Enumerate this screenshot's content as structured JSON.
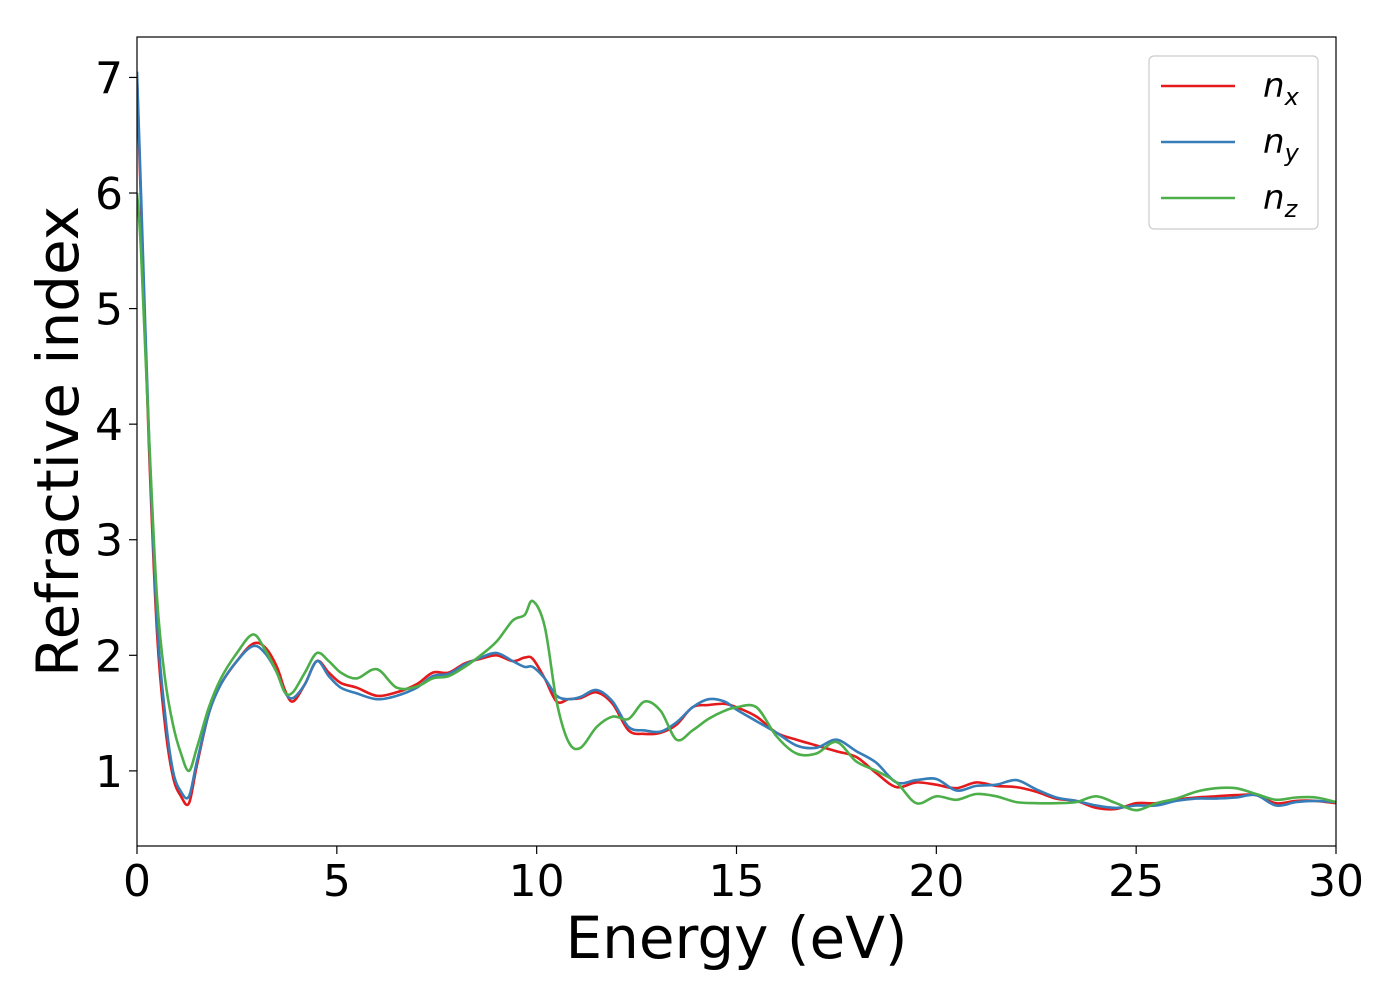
{
  "chart_data": {
    "type": "line",
    "xlabel": "Energy (eV)",
    "ylabel": "Refractive index",
    "xlim": [
      0,
      30
    ],
    "ylim": [
      0.35,
      7.35
    ],
    "xticks": [
      0,
      5,
      10,
      15,
      20,
      25,
      30
    ],
    "xtick_labels": [
      "0",
      "5",
      "10",
      "15",
      "20",
      "25",
      "30"
    ],
    "yticks": [
      1,
      2,
      3,
      4,
      5,
      6,
      7
    ],
    "ytick_labels": [
      "1",
      "2",
      "3",
      "4",
      "5",
      "6",
      "7"
    ],
    "grid": false,
    "legend_position": "top-right",
    "series": [
      {
        "name": "n",
        "subscript": "x",
        "color": "#e41a1c",
        "x": [
          0,
          0.1,
          0.3,
          0.5,
          0.7,
          0.9,
          1.1,
          1.3,
          1.5,
          1.8,
          2.1,
          2.5,
          2.9,
          3.2,
          3.5,
          3.7,
          3.9,
          4.2,
          4.5,
          4.8,
          5.1,
          5.5,
          6.0,
          6.5,
          7.0,
          7.4,
          7.8,
          8.2,
          8.6,
          9.0,
          9.4,
          9.7,
          9.9,
          10.2,
          10.5,
          10.8,
          11.1,
          11.5,
          11.9,
          12.3,
          12.7,
          13.1,
          13.5,
          13.9,
          14.3,
          14.7,
          15.0,
          15.5,
          16.0,
          16.5,
          17.0,
          17.5,
          18.0,
          18.5,
          19.0,
          19.5,
          20.0,
          20.5,
          21.0,
          21.5,
          22.0,
          22.5,
          23.0,
          23.5,
          24.0,
          24.5,
          25.0,
          25.5,
          26.0,
          26.5,
          27.0,
          27.5,
          28.0,
          28.5,
          29.0,
          29.5,
          30.0
        ],
        "y": [
          7.0,
          5.9,
          3.8,
          2.2,
          1.4,
          0.95,
          0.78,
          0.72,
          1.05,
          1.5,
          1.75,
          1.95,
          2.1,
          2.07,
          1.9,
          1.7,
          1.6,
          1.75,
          1.95,
          1.85,
          1.76,
          1.72,
          1.65,
          1.68,
          1.75,
          1.85,
          1.85,
          1.93,
          1.97,
          2.0,
          1.95,
          1.98,
          1.97,
          1.8,
          1.6,
          1.62,
          1.63,
          1.68,
          1.58,
          1.35,
          1.32,
          1.33,
          1.4,
          1.55,
          1.57,
          1.58,
          1.55,
          1.47,
          1.33,
          1.27,
          1.22,
          1.17,
          1.12,
          0.98,
          0.86,
          0.9,
          0.88,
          0.85,
          0.9,
          0.87,
          0.86,
          0.82,
          0.76,
          0.74,
          0.68,
          0.67,
          0.72,
          0.72,
          0.75,
          0.77,
          0.78,
          0.79,
          0.79,
          0.72,
          0.74,
          0.74,
          0.72
        ]
      },
      {
        "name": "n",
        "subscript": "y",
        "color": "#377eb8",
        "x": [
          0,
          0.1,
          0.3,
          0.5,
          0.7,
          0.9,
          1.1,
          1.3,
          1.5,
          1.8,
          2.1,
          2.5,
          2.9,
          3.2,
          3.5,
          3.7,
          3.9,
          4.2,
          4.5,
          4.8,
          5.1,
          5.5,
          6.0,
          6.5,
          7.0,
          7.4,
          7.8,
          8.2,
          8.6,
          9.0,
          9.4,
          9.7,
          9.9,
          10.2,
          10.5,
          10.8,
          11.1,
          11.5,
          11.9,
          12.3,
          12.7,
          13.1,
          13.5,
          13.9,
          14.3,
          14.7,
          15.0,
          15.5,
          16.0,
          16.5,
          17.0,
          17.5,
          18.0,
          18.5,
          19.0,
          19.5,
          20.0,
          20.5,
          21.0,
          21.5,
          22.0,
          22.5,
          23.0,
          23.5,
          24.0,
          24.5,
          25.0,
          25.5,
          26.0,
          26.5,
          27.0,
          27.5,
          28.0,
          28.5,
          29.0,
          29.5,
          30.0
        ],
        "y": [
          7.05,
          6.0,
          3.9,
          2.3,
          1.5,
          1.0,
          0.82,
          0.78,
          1.08,
          1.5,
          1.75,
          1.95,
          2.08,
          2.02,
          1.85,
          1.68,
          1.63,
          1.75,
          1.95,
          1.82,
          1.72,
          1.67,
          1.62,
          1.65,
          1.72,
          1.82,
          1.84,
          1.92,
          1.98,
          2.02,
          1.95,
          1.9,
          1.9,
          1.8,
          1.65,
          1.62,
          1.64,
          1.7,
          1.6,
          1.38,
          1.35,
          1.34,
          1.42,
          1.55,
          1.62,
          1.6,
          1.53,
          1.43,
          1.33,
          1.22,
          1.2,
          1.27,
          1.17,
          1.07,
          0.9,
          0.92,
          0.93,
          0.83,
          0.87,
          0.88,
          0.92,
          0.84,
          0.77,
          0.74,
          0.7,
          0.68,
          0.7,
          0.7,
          0.74,
          0.76,
          0.76,
          0.77,
          0.79,
          0.7,
          0.73,
          0.74,
          0.73
        ]
      },
      {
        "name": "n",
        "subscript": "z",
        "color": "#4daf4a",
        "x": [
          0,
          0.1,
          0.3,
          0.5,
          0.7,
          0.9,
          1.1,
          1.3,
          1.5,
          1.8,
          2.1,
          2.5,
          2.9,
          3.2,
          3.5,
          3.7,
          3.9,
          4.2,
          4.5,
          4.8,
          5.1,
          5.5,
          6.0,
          6.5,
          7.0,
          7.4,
          7.8,
          8.2,
          8.6,
          9.0,
          9.4,
          9.7,
          9.9,
          10.2,
          10.5,
          10.8,
          11.1,
          11.5,
          11.9,
          12.3,
          12.7,
          13.1,
          13.5,
          13.9,
          14.3,
          14.7,
          15.0,
          15.5,
          16.0,
          16.5,
          17.0,
          17.5,
          18.0,
          18.5,
          19.0,
          19.5,
          20.0,
          20.5,
          21.0,
          21.5,
          22.0,
          22.5,
          23.0,
          23.5,
          24.0,
          24.5,
          25.0,
          25.5,
          26.0,
          26.5,
          27.0,
          27.5,
          28.0,
          28.5,
          29.0,
          29.5,
          30.0
        ],
        "y": [
          6.0,
          5.5,
          3.9,
          2.5,
          1.8,
          1.4,
          1.15,
          1.0,
          1.2,
          1.55,
          1.8,
          2.02,
          2.18,
          2.05,
          1.85,
          1.68,
          1.68,
          1.85,
          2.02,
          1.95,
          1.85,
          1.8,
          1.88,
          1.72,
          1.73,
          1.8,
          1.82,
          1.9,
          2.0,
          2.12,
          2.3,
          2.35,
          2.47,
          2.25,
          1.6,
          1.25,
          1.2,
          1.38,
          1.47,
          1.45,
          1.6,
          1.52,
          1.27,
          1.35,
          1.45,
          1.52,
          1.55,
          1.55,
          1.3,
          1.15,
          1.15,
          1.25,
          1.08,
          1.0,
          0.9,
          0.72,
          0.78,
          0.75,
          0.8,
          0.78,
          0.73,
          0.72,
          0.72,
          0.73,
          0.78,
          0.72,
          0.66,
          0.72,
          0.76,
          0.82,
          0.85,
          0.85,
          0.8,
          0.75,
          0.77,
          0.77,
          0.73
        ]
      }
    ]
  }
}
